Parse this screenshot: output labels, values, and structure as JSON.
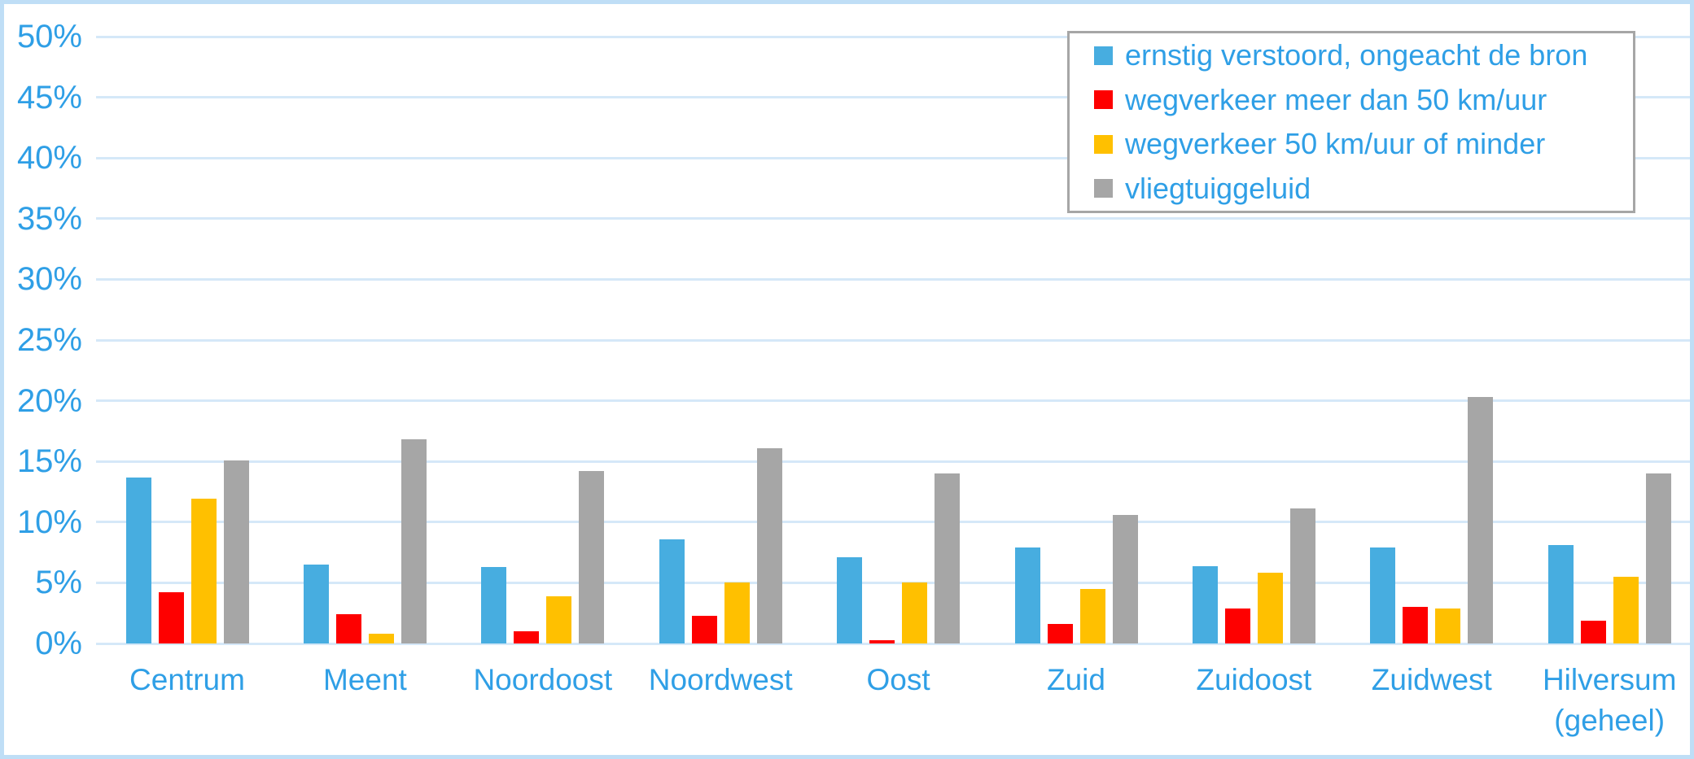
{
  "chart_data": {
    "type": "bar",
    "title": "",
    "categories": [
      "Centrum",
      "Meent",
      "Noordoost",
      "Noordwest",
      "Oost",
      "Zuid",
      "Zuidoost",
      "Zuidwest",
      "Hilversum (geheel)"
    ],
    "series": [
      {
        "name": "ernstig verstoord, ongeacht de bron",
        "color": "#47ADE0",
        "values": [
          13.7,
          6.5,
          6.3,
          8.6,
          7.1,
          7.9,
          6.4,
          7.9,
          8.1
        ]
      },
      {
        "name": "wegverkeer meer dan 50 km/uur",
        "color": "#FE0000",
        "values": [
          4.2,
          2.4,
          1.0,
          2.3,
          0.3,
          1.6,
          2.9,
          3.0,
          1.9
        ]
      },
      {
        "name": "wegverkeer 50 km/uur of minder",
        "color": "#FFC000",
        "values": [
          11.9,
          0.8,
          3.9,
          5.0,
          5.0,
          4.5,
          5.8,
          2.9,
          5.5
        ]
      },
      {
        "name": "vliegtuiggeluid",
        "color": "#A6A6A6",
        "values": [
          15.1,
          16.8,
          14.2,
          16.1,
          14.0,
          10.6,
          11.1,
          20.3,
          14.0
        ]
      }
    ],
    "ylim": [
      0,
      50
    ],
    "ytick_step": 5,
    "ytick_labels": [
      "0%",
      "5%",
      "10%",
      "15%",
      "20%",
      "25%",
      "30%",
      "35%",
      "40%",
      "45%",
      "50%"
    ],
    "grid": true,
    "legend_position": "top-right"
  },
  "colors": {
    "background": "#FFFFFF",
    "page_border": "#BFDEF6",
    "gridline": "#D5E8F8",
    "axis_text": "#2F9FE6",
    "legend_border": "#A6A6A6"
  }
}
